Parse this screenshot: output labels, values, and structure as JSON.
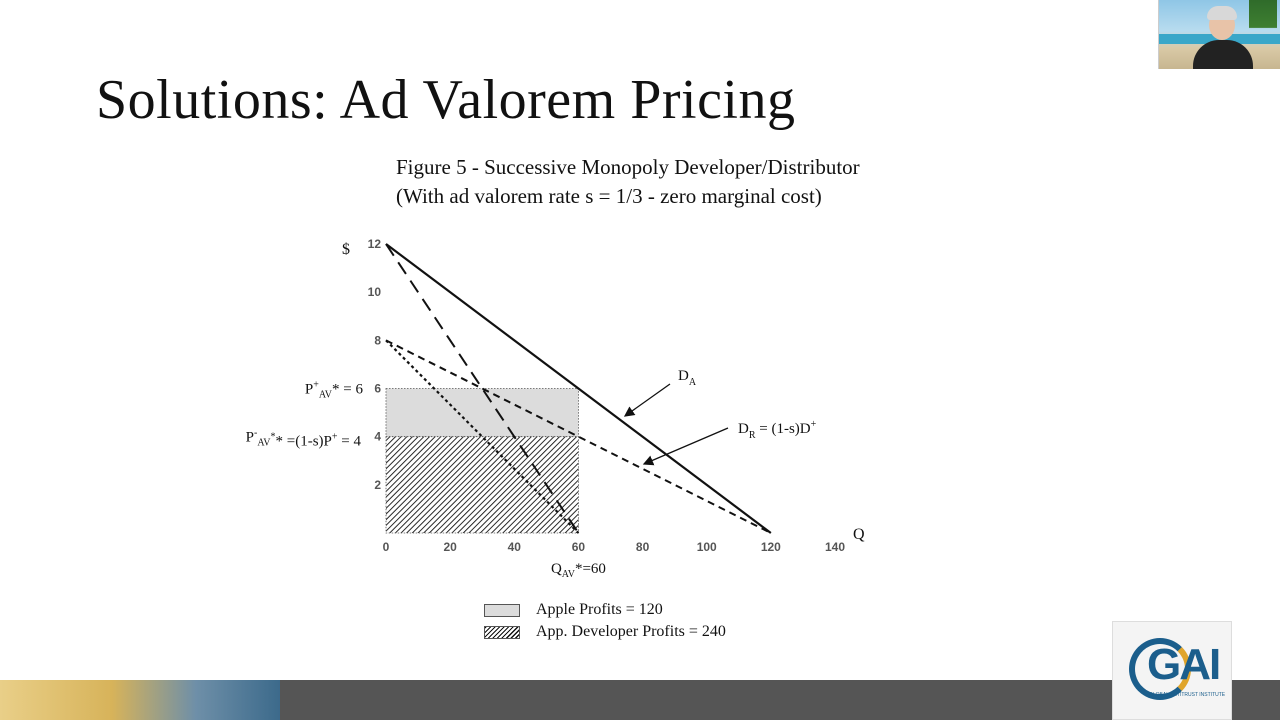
{
  "slide": {
    "title": "Solutions: Ad Valorem Pricing"
  },
  "figure": {
    "title_line1": "Figure 5 - Successive Monopoly Developer/Distributor",
    "title_line2": "(With ad valorem rate s = 1/3 - zero marginal cost)"
  },
  "legend": {
    "apple": "Apple Profits = 120",
    "developer": "App. Developer Profits = 240"
  },
  "logo": {
    "text": "GAI",
    "subtext": "GLOBAL ANTITRUST INSTITUTE"
  },
  "chart_data": {
    "type": "line",
    "ylabel": "$",
    "xlabel": "Q",
    "xlim": [
      0,
      140
    ],
    "ylim": [
      0,
      12
    ],
    "x_ticks": [
      0,
      20,
      40,
      60,
      80,
      100,
      120,
      140
    ],
    "y_ticks": [
      2,
      4,
      6,
      8,
      10,
      12
    ],
    "series": [
      {
        "name": "D_A",
        "style": "solid",
        "points": [
          [
            0,
            12
          ],
          [
            120,
            0
          ]
        ]
      },
      {
        "name": "D_R = (1-s)D+",
        "style": "dashed",
        "points": [
          [
            0,
            8
          ],
          [
            120,
            0
          ]
        ]
      },
      {
        "style": "long-dashed",
        "points": [
          [
            0,
            12
          ],
          [
            60,
            0
          ]
        ]
      },
      {
        "style": "dotted",
        "points": [
          [
            0,
            8
          ],
          [
            60,
            0
          ]
        ]
      }
    ],
    "regions": [
      {
        "label": "Apple Profits = 120",
        "fill": "#dcdcdc",
        "x": [
          0,
          60
        ],
        "y": [
          4,
          6
        ]
      },
      {
        "label": "App. Developer Profits = 240",
        "fill": "hatch",
        "x": [
          0,
          60
        ],
        "y": [
          0,
          4
        ]
      }
    ],
    "annotations": {
      "p_plus": {
        "main": "P",
        "sup": "+",
        "sub": "AV",
        "rest": "* = 6",
        "value": 6
      },
      "p_minus": {
        "main": "P",
        "sup": "-",
        "sub": "AV",
        "rest": "* =(1-s)P",
        "rest_sup": "+",
        "tail": " = 4",
        "value": 4
      },
      "q_star": {
        "main": "Q",
        "sub": "AV",
        "rest": "*=60",
        "value": 60
      },
      "d_a": {
        "main": "D",
        "sub": "A"
      },
      "d_r": {
        "main": "D",
        "sub": "R",
        "rest": " = (1-s)D",
        "rest_sup": "+"
      }
    }
  }
}
